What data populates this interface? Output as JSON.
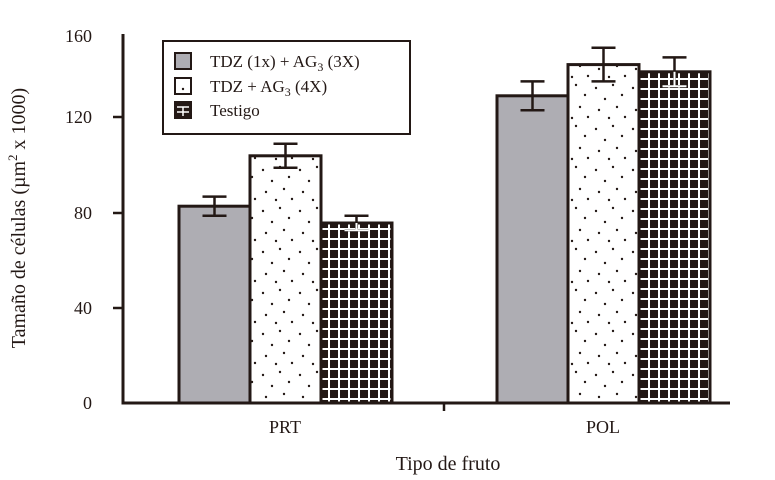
{
  "chart_data": {
    "type": "bar",
    "title": "",
    "xlabel": "Tipo de fruto",
    "ylabel": "Tamaño de células (µm² x 1000)",
    "ylabel_parts": {
      "pre": "Tamaño de células (µm",
      "sup": "2",
      "post": " x 1000)"
    },
    "ylim": [
      0,
      160
    ],
    "yticks": [
      0,
      40,
      80,
      120,
      160
    ],
    "grid": false,
    "legend_position": "upper left (inside)",
    "categories": [
      "PRT",
      "POL"
    ],
    "series": [
      {
        "name": "TDZ (1x) + AG3 (3X)",
        "label_pre": "TDZ (1x) + AG",
        "label_sub": "3",
        "label_post": " (3X)",
        "pattern": "solid-grey",
        "color": "#aeadb3",
        "values": [
          82,
          128
        ],
        "errors": [
          4,
          6
        ]
      },
      {
        "name": "TDZ + AG3 (4X)",
        "label_pre": "TDZ + AG",
        "label_sub": "3",
        "label_post": " (4X)",
        "pattern": "dots",
        "color": "#ffffff",
        "values": [
          103,
          141
        ],
        "errors": [
          5,
          7
        ]
      },
      {
        "name": "Testigo",
        "label_pre": "Testigo",
        "label_sub": "",
        "label_post": "",
        "pattern": "grid",
        "color": "#231815",
        "values": [
          75,
          138
        ],
        "errors": [
          3,
          6
        ]
      }
    ]
  }
}
